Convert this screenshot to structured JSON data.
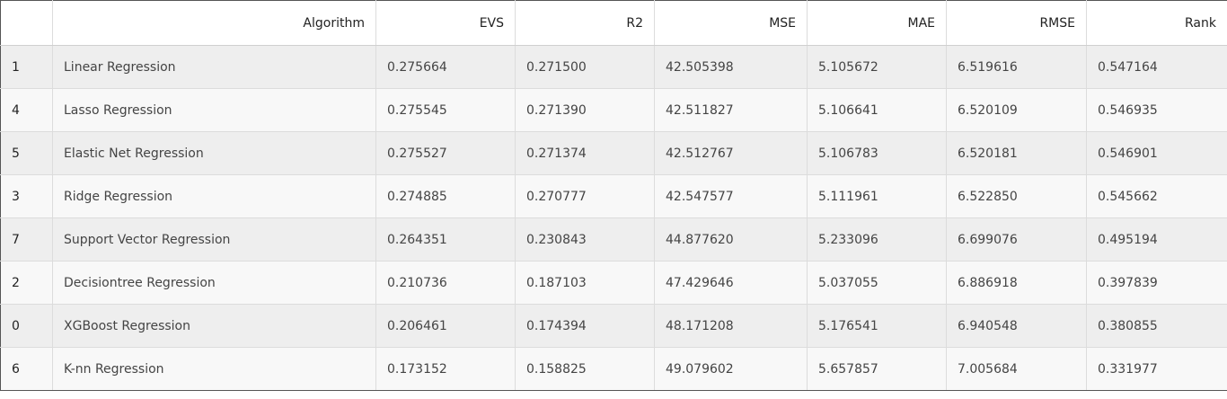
{
  "table": {
    "columns": [
      "",
      "Algorithm",
      "EVS",
      "R2",
      "MSE",
      "MAE",
      "RMSE",
      "Rank"
    ],
    "rows": [
      [
        "1",
        "Linear Regression",
        "0.275664",
        "0.271500",
        "42.505398",
        "5.105672",
        "6.519616",
        "0.547164"
      ],
      [
        "4",
        "Lasso Regression",
        "0.275545",
        "0.271390",
        "42.511827",
        "5.106641",
        "6.520109",
        "0.546935"
      ],
      [
        "5",
        "Elastic Net Regression",
        "0.275527",
        "0.271374",
        "42.512767",
        "5.106783",
        "6.520181",
        "0.546901"
      ],
      [
        "3",
        "Ridge Regression",
        "0.274885",
        "0.270777",
        "42.547577",
        "5.111961",
        "6.522850",
        "0.545662"
      ],
      [
        "7",
        "Support Vector Regression",
        "0.264351",
        "0.230843",
        "44.877620",
        "5.233096",
        "6.699076",
        "0.495194"
      ],
      [
        "2",
        "Decisiontree Regression",
        "0.210736",
        "0.187103",
        "47.429646",
        "5.037055",
        "6.886918",
        "0.397839"
      ],
      [
        "0",
        "XGBoost Regression",
        "0.206461",
        "0.174394",
        "48.171208",
        "5.176541",
        "6.940548",
        "0.380855"
      ],
      [
        "6",
        "K-nn Regression",
        "0.173152",
        "0.158825",
        "49.079602",
        "5.657857",
        "7.005684",
        "0.331977"
      ]
    ]
  }
}
